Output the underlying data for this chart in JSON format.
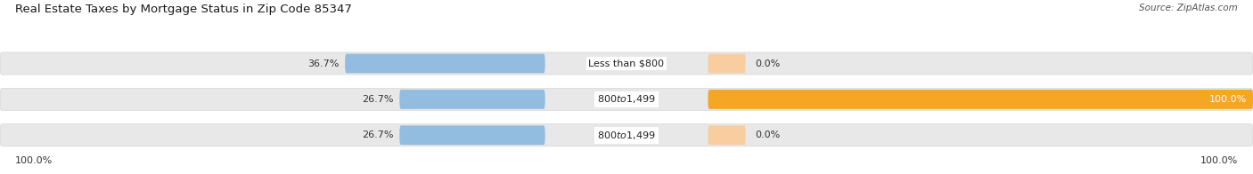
{
  "title": "Real Estate Taxes by Mortgage Status in Zip Code 85347",
  "source": "Source: ZipAtlas.com",
  "rows": [
    {
      "label": "Less than $800",
      "without_mortgage_pct": 36.7,
      "with_mortgage_pct": 0.0
    },
    {
      "label": "$800 to $1,499",
      "without_mortgage_pct": 26.7,
      "with_mortgage_pct": 100.0
    },
    {
      "label": "$800 to $1,499",
      "without_mortgage_pct": 26.7,
      "with_mortgage_pct": 0.0
    }
  ],
  "color_without": "#92bce0",
  "color_with_full": "#f5a623",
  "color_with_light": "#f8ceA0",
  "bar_bg": "#e8e8e8",
  "bar_bg_edge": "#d0d0d0",
  "left_label_pct": "100.0%",
  "right_label_pct": "100.0%",
  "title_fontsize": 9.5,
  "source_fontsize": 7.5,
  "bar_label_fontsize": 8,
  "pct_fontsize": 8,
  "legend_fontsize": 8.5,
  "figsize": [
    14.06,
    1.96
  ],
  "dpi": 100
}
